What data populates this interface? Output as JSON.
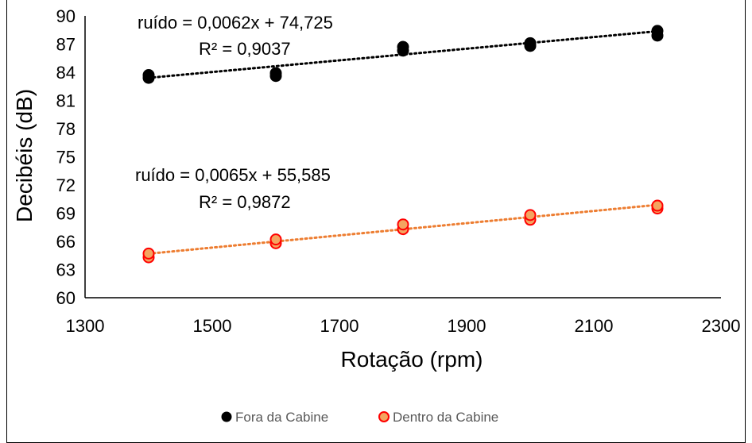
{
  "chart_data": {
    "type": "scatter",
    "title": "",
    "xlabel": "Rotação (rpm)",
    "ylabel": "Decibéis (dB)",
    "xlim": [
      1300,
      2300
    ],
    "ylim": [
      60,
      90
    ],
    "xticks": [
      1300,
      1500,
      1700,
      1900,
      2100,
      2300
    ],
    "yticks": [
      60,
      63,
      66,
      69,
      72,
      75,
      78,
      81,
      84,
      87,
      90
    ],
    "grid": false,
    "legend_position": "bottom",
    "series": [
      {
        "name": "Fora da Cabine",
        "color": "#000000",
        "edge_color": "#000000",
        "trendline_color": "#000000",
        "points": [
          {
            "x": 1400,
            "y": 83.4
          },
          {
            "x": 1400,
            "y": 83.7
          },
          {
            "x": 1600,
            "y": 83.6
          },
          {
            "x": 1600,
            "y": 83.9
          },
          {
            "x": 1800,
            "y": 86.3
          },
          {
            "x": 1800,
            "y": 86.7
          },
          {
            "x": 2000,
            "y": 86.8
          },
          {
            "x": 2000,
            "y": 87.1
          },
          {
            "x": 2200,
            "y": 87.9
          },
          {
            "x": 2200,
            "y": 88.4
          }
        ],
        "trendline": {
          "slope": 0.0062,
          "intercept": 74.725
        },
        "equation_label": "ruído = 0,0062x + 74,725",
        "r2_label": "R² = 0,9037"
      },
      {
        "name": "Dentro da Cabine",
        "color": "#F4A460",
        "edge_color": "#FF0000",
        "trendline_color": "#ED7D31",
        "points": [
          {
            "x": 1400,
            "y": 64.3
          },
          {
            "x": 1400,
            "y": 64.7
          },
          {
            "x": 1600,
            "y": 65.8
          },
          {
            "x": 1600,
            "y": 66.2
          },
          {
            "x": 1800,
            "y": 67.3
          },
          {
            "x": 1800,
            "y": 67.8
          },
          {
            "x": 2000,
            "y": 68.3
          },
          {
            "x": 2000,
            "y": 68.8
          },
          {
            "x": 2200,
            "y": 69.5
          },
          {
            "x": 2200,
            "y": 69.8
          }
        ],
        "trendline": {
          "slope": 0.0065,
          "intercept": 55.585
        },
        "equation_label": "ruído = 0,0065x + 55,585",
        "r2_label": "R² = 0,9872"
      }
    ]
  }
}
